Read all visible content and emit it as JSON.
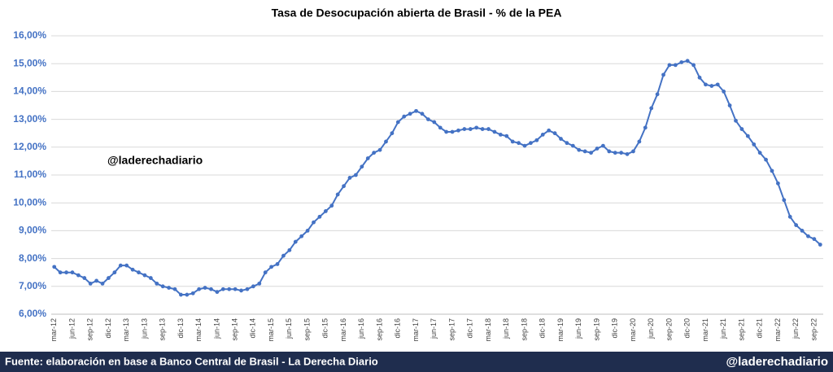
{
  "chart_data": {
    "type": "line",
    "title": "Tasa de Desocupación abierta de Brasil - % de la PEA",
    "annotation": "@laderechadiario",
    "source": "Fuente: elaboración en base a Banco Central de Brasil - La Derecha Diario",
    "brand": "@laderechadiario",
    "categories": [
      "mar-12",
      null,
      null,
      "jun-12",
      null,
      null,
      "sep-12",
      null,
      null,
      "dic-12",
      null,
      null,
      "mar-13",
      null,
      null,
      "jun-13",
      null,
      null,
      "sep-13",
      null,
      null,
      "dic-13",
      null,
      null,
      "mar-14",
      null,
      null,
      "jun-14",
      null,
      null,
      "sep-14",
      null,
      null,
      "dic-14",
      null,
      null,
      "mar-15",
      null,
      null,
      "jun-15",
      null,
      null,
      "sep-15",
      null,
      null,
      "dic-15",
      null,
      null,
      "mar-16",
      null,
      null,
      "jun-16",
      null,
      null,
      "sep-16",
      null,
      null,
      "dic-16",
      null,
      null,
      "mar-17",
      null,
      null,
      "jun-17",
      null,
      null,
      "sep-17",
      null,
      null,
      "dic-17",
      null,
      null,
      "mar-18",
      null,
      null,
      "jun-18",
      null,
      null,
      "sep-18",
      null,
      null,
      "dic-18",
      null,
      null,
      "mar-19",
      null,
      null,
      "jun-19",
      null,
      null,
      "sep-19",
      null,
      null,
      "dic-19",
      null,
      null,
      "mar-20",
      null,
      null,
      "jun-20",
      null,
      null,
      "sep-20",
      null,
      null,
      "dic-20",
      null,
      null,
      "mar-21",
      null,
      null,
      "jun-21",
      null,
      null,
      "sep-21",
      null,
      null,
      "dic-21",
      null,
      null,
      "mar-22",
      null,
      null,
      "jun-22",
      null,
      null,
      "sep-22",
      null
    ],
    "values": [
      7.7,
      7.5,
      7.5,
      7.5,
      7.4,
      7.3,
      7.1,
      7.2,
      7.1,
      7.3,
      7.5,
      7.75,
      7.75,
      7.6,
      7.5,
      7.4,
      7.3,
      7.1,
      7.0,
      6.95,
      6.9,
      6.7,
      6.7,
      6.75,
      6.9,
      6.95,
      6.9,
      6.8,
      6.9,
      6.9,
      6.9,
      6.85,
      6.9,
      7.0,
      7.1,
      7.5,
      7.7,
      7.8,
      8.1,
      8.3,
      8.6,
      8.8,
      9.0,
      9.3,
      9.5,
      9.7,
      9.9,
      10.3,
      10.6,
      10.9,
      11.0,
      11.3,
      11.6,
      11.8,
      11.9,
      12.2,
      12.5,
      12.9,
      13.1,
      13.2,
      13.3,
      13.2,
      13.0,
      12.9,
      12.7,
      12.55,
      12.55,
      12.6,
      12.65,
      12.65,
      12.7,
      12.65,
      12.65,
      12.55,
      12.45,
      12.4,
      12.2,
      12.15,
      12.05,
      12.15,
      12.25,
      12.45,
      12.6,
      12.5,
      12.3,
      12.15,
      12.05,
      11.9,
      11.85,
      11.8,
      11.95,
      12.05,
      11.85,
      11.8,
      11.8,
      11.75,
      11.85,
      12.2,
      12.7,
      13.4,
      13.9,
      14.6,
      14.95,
      14.95,
      15.05,
      15.1,
      14.95,
      14.5,
      14.25,
      14.2,
      14.25,
      14.0,
      13.5,
      12.95,
      12.65,
      12.4,
      12.1,
      11.8,
      11.55,
      11.15,
      10.7,
      10.1,
      9.5,
      9.2,
      9.0,
      8.8,
      8.7,
      8.5
    ],
    "color": "#4472c4",
    "ylim": [
      6,
      16
    ],
    "yticks": [
      {
        "value": 6,
        "label": "6,00%"
      },
      {
        "value": 7,
        "label": "7,00%"
      },
      {
        "value": 8,
        "label": "8,00%"
      },
      {
        "value": 9,
        "label": "9,00%"
      },
      {
        "value": 10,
        "label": "10,00%"
      },
      {
        "value": 11,
        "label": "11,00%"
      },
      {
        "value": 12,
        "label": "12,00%"
      },
      {
        "value": 13,
        "label": "13,00%"
      },
      {
        "value": 14,
        "label": "14,00%"
      },
      {
        "value": 15,
        "label": "15,00%"
      },
      {
        "value": 16,
        "label": "16,00%"
      }
    ],
    "grid": true
  }
}
